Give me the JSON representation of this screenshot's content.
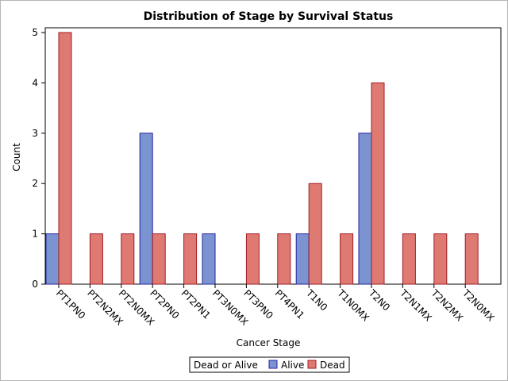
{
  "chart_data": {
    "type": "bar",
    "title": "Distribution of Stage by Survival Status",
    "xlabel": "Cancer Stage",
    "ylabel": "Count",
    "ylim": [
      0,
      5
    ],
    "yticks": [
      0,
      1,
      2,
      3,
      4,
      5
    ],
    "grid": false,
    "legend_placement": "bottom",
    "legend_title": "Dead or Alive",
    "categories": [
      "PT1PN0",
      "PT2N2MX",
      "PT2N0MX",
      "PT2PN0",
      "PT2PN1",
      "PT3N0MX",
      "PT3PN0",
      "PT4PN1",
      "T1N0",
      "T1N0MX",
      "T2N0",
      "T2N1MX",
      "T2N2MX",
      "T2N0MX"
    ],
    "series": [
      {
        "name": "Alive",
        "color": "#7b93d1",
        "stroke": "#2323a0",
        "values": [
          1,
          0,
          0,
          3,
          0,
          1,
          0,
          0,
          1,
          0,
          3,
          0,
          0,
          0
        ]
      },
      {
        "name": "Dead",
        "color": "#de7a72",
        "stroke": "#a01c24",
        "values": [
          5,
          1,
          1,
          1,
          1,
          0,
          1,
          1,
          2,
          1,
          4,
          1,
          1,
          1
        ]
      }
    ]
  }
}
